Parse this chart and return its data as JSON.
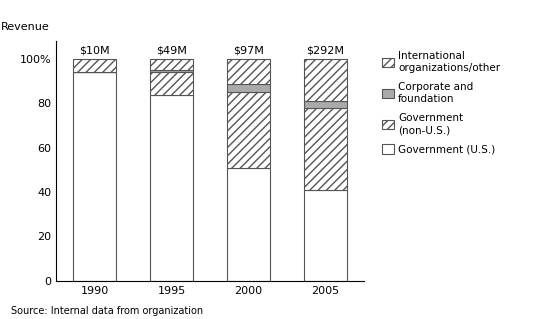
{
  "years": [
    "1990",
    "1995",
    "2000",
    "2005"
  ],
  "x_positions": [
    0,
    1,
    2,
    3
  ],
  "totals": [
    "$10M",
    "$49M",
    "$97M",
    "$292M"
  ],
  "gov_us": [
    94,
    84,
    51,
    41
  ],
  "gov_nonus": [
    0,
    10,
    34,
    37
  ],
  "corporate": [
    0,
    1,
    4,
    3
  ],
  "intl_other": [
    6,
    5,
    11,
    19
  ],
  "bar_width": 0.55,
  "ylim": [
    0,
    108
  ],
  "yticks": [
    0,
    20,
    40,
    60,
    80,
    100
  ],
  "ylabel": "Revenue",
  "source": "Source: Internal data from organization",
  "legend_labels": [
    "International\norganizations/other",
    "Corporate and\nfoundation",
    "Government\n(non-U.S.)",
    "Government (U.S.)"
  ],
  "color_gov_us": "#ffffff",
  "color_gov_nonus": "#ffffff",
  "color_corporate": "#aaaaaa",
  "color_intl": "#ffffff",
  "edge_color": "#555555",
  "bg_color": "#ffffff"
}
